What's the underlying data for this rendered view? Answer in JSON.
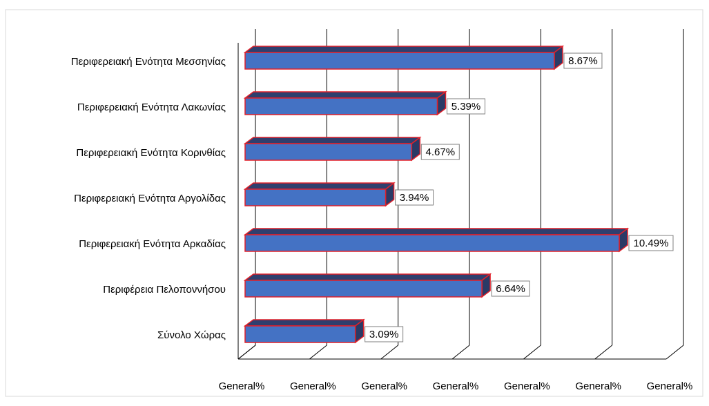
{
  "chart_data": {
    "type": "bar3d",
    "categories": [
      "Περιφερειακή Ενότητα Μεσσηνίας",
      "Περιφερειακή Ενότητα Λακωνίας",
      "Περιφερειακή Ενότητα Κορινθίας",
      "Περιφερειακή Ενότητα Αργολίδας",
      "Περιφερειακή Ενότητα Αρκαδίας",
      "Περιφέρεια Πελοποννήσου",
      "Σύνολο Χώρας"
    ],
    "values": [
      8.67,
      5.39,
      4.67,
      3.94,
      10.49,
      6.64,
      3.09
    ],
    "value_labels": [
      "8.67%",
      "5.39%",
      "4.67%",
      "3.94%",
      "10.49%",
      "6.64%",
      "3.09%"
    ],
    "color": "#4472c4",
    "edge_color": "#e0202a",
    "xlim": [
      0,
      12
    ],
    "xticks": [
      {
        "value": 0,
        "label": "General%"
      },
      {
        "value": 2,
        "label": "General%"
      },
      {
        "value": 4,
        "label": "General%"
      },
      {
        "value": 6,
        "label": "General%"
      },
      {
        "value": 8,
        "label": "General%"
      },
      {
        "value": 10,
        "label": "General%"
      },
      {
        "value": 12,
        "label": "General%"
      }
    ],
    "grid": true
  }
}
